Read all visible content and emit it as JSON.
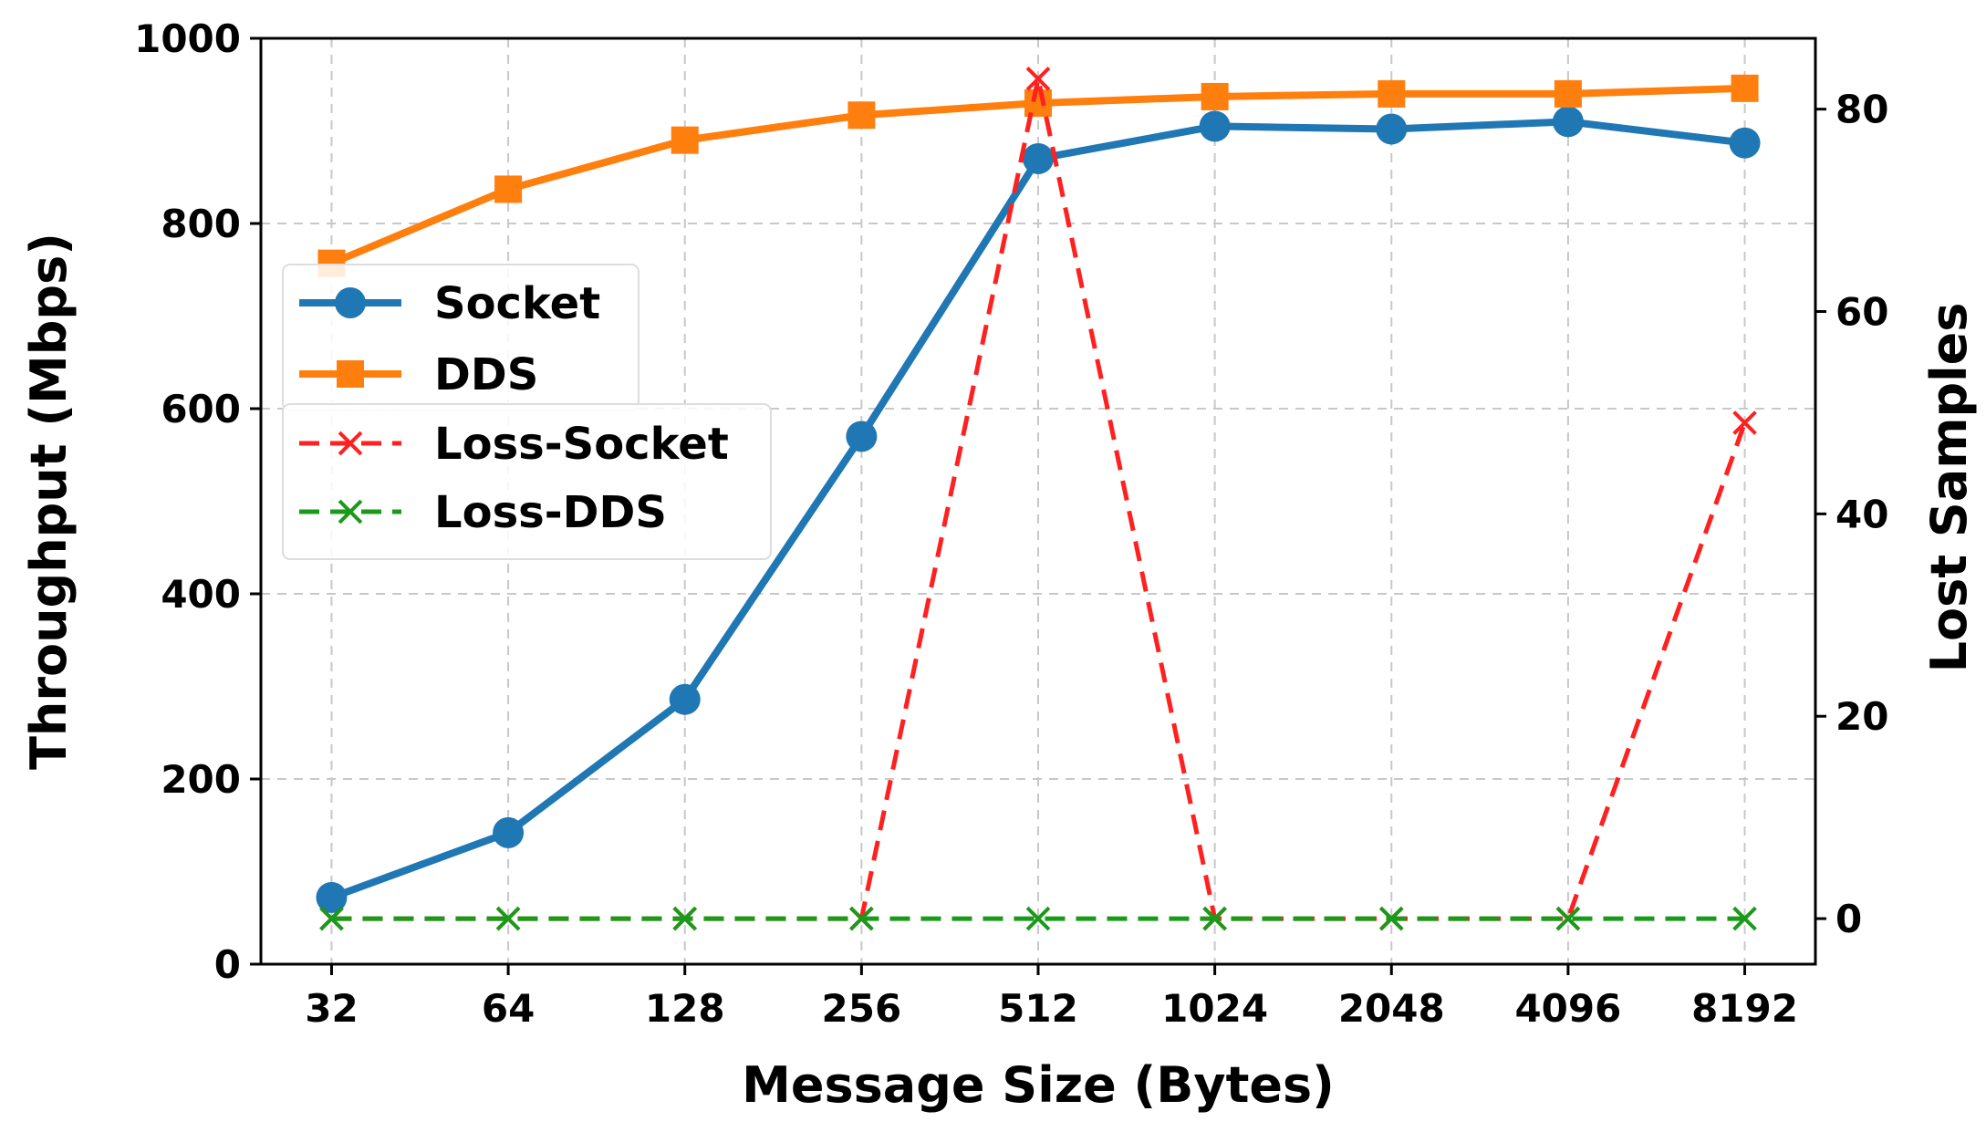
{
  "chart_data": {
    "type": "line",
    "categories": [
      "32",
      "64",
      "128",
      "256",
      "512",
      "1024",
      "2048",
      "4096",
      "8192"
    ],
    "xlabel": "Message Size (Bytes)",
    "ylabel": "Throughput (Mbps)",
    "y2label": "Lost Samples",
    "ylim": [
      0,
      1000
    ],
    "y2lim": [
      -4.5,
      87
    ],
    "yticks": [
      0,
      200,
      400,
      600,
      800,
      1000
    ],
    "y2ticks": [
      0,
      20,
      40,
      60,
      80
    ],
    "grid": true,
    "legend_position": "center-left",
    "series": [
      {
        "name": "Socket",
        "axis": "left",
        "marker": "circle",
        "dash": false,
        "color": "#1f77b4",
        "values": [
          72,
          142,
          286,
          570,
          870,
          905,
          902,
          910,
          887
        ]
      },
      {
        "name": "DDS",
        "axis": "left",
        "marker": "square",
        "dash": false,
        "color": "#ff7f0e",
        "values": [
          757,
          837,
          890,
          917,
          930,
          937,
          940,
          940,
          946
        ]
      },
      {
        "name": "Loss-Socket",
        "axis": "right",
        "marker": "x",
        "dash": true,
        "color": "#ff2020",
        "values": [
          0,
          0,
          0,
          0,
          83,
          0,
          0,
          0,
          49
        ]
      },
      {
        "name": "Loss-DDS",
        "axis": "right",
        "marker": "x",
        "dash": true,
        "color": "#1a9a1a",
        "values": [
          0,
          0,
          0,
          0,
          0,
          0,
          0,
          0,
          0
        ]
      }
    ]
  }
}
